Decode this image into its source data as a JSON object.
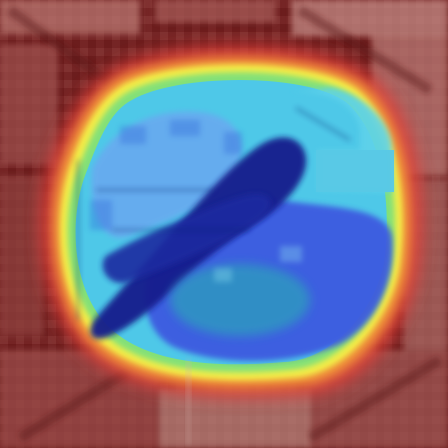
{
  "image": {
    "kind": "saliency-heatmap-overlay",
    "palette": {
      "background_dark": "#6e1e1e",
      "background_mid": "#9a4a48",
      "background_light": "#c88a82",
      "ring_red": "#e0403a",
      "ring_orange": "#f29a3a",
      "ring_yellow": "#f2f24a",
      "ring_green": "#7ee07a",
      "inner_cyan": "#4ec8e8",
      "inner_light_blue": "#6aa8f0",
      "inner_blue": "#3c5ae0",
      "inner_navy": "#141e8c",
      "inner_teal": "#2aa8b8"
    }
  }
}
